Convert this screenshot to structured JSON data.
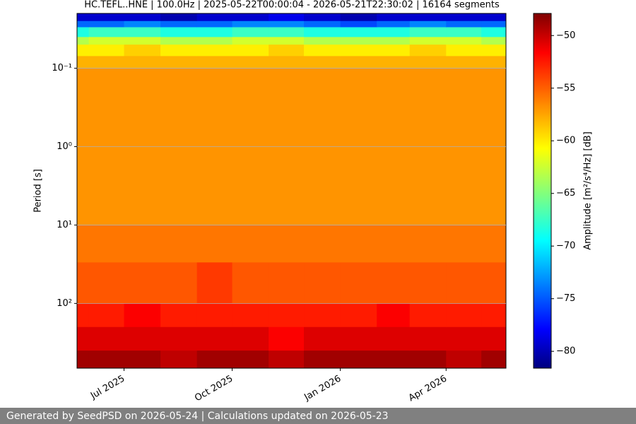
{
  "chart_data": {
    "type": "spectrogram",
    "title": "HC.TEFL..HNE | 100.0Hz | 2025-05-22T00:00:04 - 2026-05-21T22:30:02 | 16164 segments",
    "y_label": "Period [s]",
    "colorbar_label": "Amplitude [m²/s⁴/Hz] [dB]",
    "footer": "Generated by SeedPSD on 2026-05-24 | Calculations updated on 2026-05-23",
    "x": [
      "2025-05",
      "2025-06",
      "2025-07",
      "2025-08",
      "2025-09",
      "2025-10",
      "2025-11",
      "2025-12",
      "2026-01",
      "2026-02",
      "2026-03",
      "2026-04",
      "2026-05"
    ],
    "xlim": [
      "2025-05-22T00:00:04",
      "2026-05-21T22:30:02"
    ],
    "xticks": [
      {
        "value": "2025-07",
        "label": "Jul 2025"
      },
      {
        "value": "2025-10",
        "label": "Oct 2025"
      },
      {
        "value": "2026-01",
        "label": "Jan 2026"
      },
      {
        "value": "2026-04",
        "label": "Apr 2026"
      }
    ],
    "period_bins": [
      0.02,
      0.025,
      0.03,
      0.04,
      0.05,
      0.07,
      0.1,
      1,
      10,
      30,
      100,
      200,
      400,
      670
    ],
    "values": [
      [
        -79,
        -74,
        -68,
        -63,
        -60,
        -58,
        -57,
        -57,
        -56,
        -55,
        -53,
        -51,
        -49
      ],
      [
        -79,
        -74,
        -67,
        -62,
        -60,
        -58,
        -57,
        -57,
        -56,
        -55,
        -53,
        -51,
        -49
      ],
      [
        -79,
        -73,
        -67,
        -62,
        -59,
        -58,
        -57,
        -57,
        -56,
        -55,
        -52,
        -51,
        -49
      ],
      [
        -80,
        -74,
        -68,
        -63,
        -60,
        -58,
        -57,
        -57,
        -56,
        -55,
        -53,
        -51,
        -50
      ],
      [
        -79,
        -74,
        -68,
        -63,
        -60,
        -58,
        -57,
        -57,
        -56,
        -54,
        -53,
        -51,
        -49
      ],
      [
        -79,
        -73,
        -67,
        -62,
        -60,
        -58,
        -57,
        -57,
        -56,
        -55,
        -53,
        -51,
        -49
      ],
      [
        -78,
        -73,
        -67,
        -62,
        -59,
        -58,
        -57,
        -57,
        -56,
        -55,
        -53,
        -52,
        -50
      ],
      [
        -79,
        -74,
        -68,
        -63,
        -60,
        -58,
        -57,
        -57,
        -56,
        -55,
        -53,
        -51,
        -49
      ],
      [
        -80,
        -75,
        -68,
        -63,
        -60,
        -58,
        -57,
        -57,
        -56,
        -55,
        -53,
        -51,
        -49
      ],
      [
        -79,
        -74,
        -68,
        -63,
        -60,
        -58,
        -57,
        -57,
        -56,
        -55,
        -52,
        -51,
        -49
      ],
      [
        -79,
        -73,
        -67,
        -62,
        -59,
        -58,
        -57,
        -57,
        -56,
        -55,
        -53,
        -51,
        -49
      ],
      [
        -79,
        -74,
        -67,
        -62,
        -60,
        -58,
        -57,
        -57,
        -56,
        -55,
        -53,
        -51,
        -50
      ],
      [
        -79,
        -74,
        -68,
        -63,
        -60,
        -58,
        -57,
        -57,
        -56,
        -55,
        -53,
        -51,
        -49
      ]
    ],
    "ylim": [
      0.02,
      670
    ],
    "y_log": true,
    "y_inverted": true,
    "yticks": [
      {
        "value": 0.1,
        "label": "10⁻¹"
      },
      {
        "value": 1,
        "label": "10⁰"
      },
      {
        "value": 10,
        "label": "10¹"
      },
      {
        "value": 100,
        "label": "10²"
      }
    ],
    "grid": true,
    "colormap": "jet",
    "clim": [
      -81.6,
      -47.9
    ],
    "cticks": [
      {
        "value": -80,
        "label": "−80"
      },
      {
        "value": -75,
        "label": "−75"
      },
      {
        "value": -70,
        "label": "−70"
      },
      {
        "value": -65,
        "label": "−65"
      },
      {
        "value": -60,
        "label": "−60"
      },
      {
        "value": -55,
        "label": "−55"
      },
      {
        "value": -50,
        "label": "−50"
      }
    ]
  }
}
